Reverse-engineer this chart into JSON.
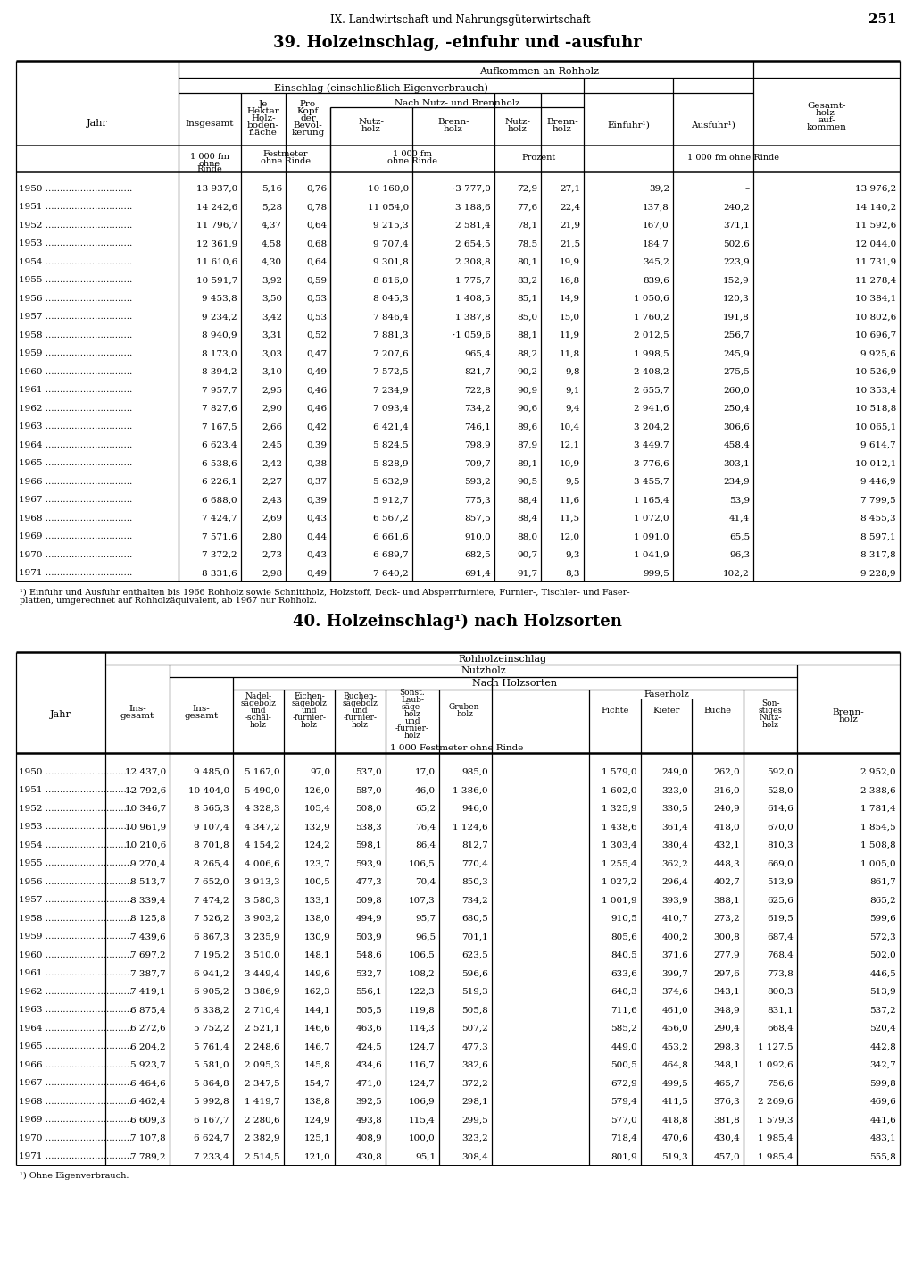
{
  "page_header": "IX. Landwirtschaft und Nahrungsgüterwirtschaft",
  "page_number": "251",
  "table1_title": "39. Holzeinschlag, -einfuhr und -ausfuhr",
  "table2_title": "40. Holzeinschlag¹) nach Holzsorten",
  "table1_footnote_line1": "¹) Einfuhr und Ausfuhr enthalten bis 1966 Rohholz sowie Schnittholz, Holzstoff, Deck- und Absperrfurniere, Furnier-, Tischler- und Faser-",
  "table1_footnote_line2": "platten, umgerechnet auf Rohholzäquivalent, ab 1967 nur Rohholz.",
  "table2_footnote": "¹) Ohne Eigenverbrauch.",
  "table1_data": [
    [
      "1950",
      "13 937,0",
      "5,16",
      "0,76",
      "10 160,0",
      "·3 777,0",
      "72,9",
      "27,1",
      "39,2",
      "–",
      "13 976,2"
    ],
    [
      "1951",
      "14 242,6",
      "5,28",
      "0,78",
      "11 054,0",
      "3 188,6",
      "77,6",
      "22,4",
      "137,8",
      "240,2",
      "14 140,2"
    ],
    [
      "1952",
      "11 796,7",
      "4,37",
      "0,64",
      "9 215,3",
      "2 581,4",
      "78,1",
      "21,9",
      "167,0",
      "371,1",
      "11 592,6"
    ],
    [
      "1953",
      "12 361,9",
      "4,58",
      "0,68",
      "9 707,4",
      "2 654,5",
      "78,5",
      "21,5",
      "184,7",
      "502,6",
      "12 044,0"
    ],
    [
      "1954",
      "11 610,6",
      "4,30",
      "0,64",
      "9 301,8",
      "2 308,8",
      "80,1",
      "19,9",
      "345,2",
      "223,9",
      "11 731,9"
    ],
    [
      "1955",
      "10 591,7",
      "3,92",
      "0,59",
      "8 816,0",
      "1 775,7",
      "83,2",
      "16,8",
      "839,6",
      "152,9",
      "11 278,4"
    ],
    [
      "1956",
      "9 453,8",
      "3,50",
      "0,53",
      "8 045,3",
      "1 408,5",
      "85,1",
      "14,9",
      "1 050,6",
      "120,3",
      "10 384,1"
    ],
    [
      "1957",
      "9 234,2",
      "3,42",
      "0,53",
      "7 846,4",
      "1 387,8",
      "85,0",
      "15,0",
      "1 760,2",
      "191,8",
      "10 802,6"
    ],
    [
      "1958",
      "8 940,9",
      "3,31",
      "0,52",
      "7 881,3",
      "·1 059,6",
      "88,1",
      "11,9",
      "2 012,5",
      "256,7",
      "10 696,7"
    ],
    [
      "1959",
      "8 173,0",
      "3,03",
      "0,47",
      "7 207,6",
      "965,4",
      "88,2",
      "11,8",
      "1 998,5",
      "245,9",
      "9 925,6"
    ],
    [
      "1960",
      "8 394,2",
      "3,10",
      "0,49",
      "7 572,5",
      "821,7",
      "90,2",
      "9,8",
      "2 408,2",
      "275,5",
      "10 526,9"
    ],
    [
      "1961",
      "7 957,7",
      "2,95",
      "0,46",
      "7 234,9",
      "722,8",
      "90,9",
      "9,1",
      "2 655,7",
      "260,0",
      "10 353,4"
    ],
    [
      "1962",
      "7 827,6",
      "2,90",
      "0,46",
      "7 093,4",
      "734,2",
      "90,6",
      "9,4",
      "2 941,6",
      "250,4",
      "10 518,8"
    ],
    [
      "1963",
      "7 167,5",
      "2,66",
      "0,42",
      "6 421,4",
      "746,1",
      "89,6",
      "10,4",
      "3 204,2",
      "306,6",
      "10 065,1"
    ],
    [
      "1964",
      "6 623,4",
      "2,45",
      "0,39",
      "5 824,5",
      "798,9",
      "87,9",
      "12,1",
      "3 449,7",
      "458,4",
      "9 614,7"
    ],
    [
      "1965",
      "6 538,6",
      "2,42",
      "0,38",
      "5 828,9",
      "709,7",
      "89,1",
      "10,9",
      "3 776,6",
      "303,1",
      "10 012,1"
    ],
    [
      "1966",
      "6 226,1",
      "2,27",
      "0,37",
      "5 632,9",
      "593,2",
      "90,5",
      "9,5",
      "3 455,7",
      "234,9",
      "9 446,9"
    ],
    [
      "1967",
      "6 688,0",
      "2,43",
      "0,39",
      "5 912,7",
      "775,3",
      "88,4",
      "11,6",
      "1 165,4",
      "53,9",
      "7 799,5"
    ],
    [
      "1968",
      "7 424,7",
      "2,69",
      "0,43",
      "6 567,2",
      "857,5",
      "88,4",
      "11,5",
      "1 072,0",
      "41,4",
      "8 455,3"
    ],
    [
      "1969",
      "7 571,6",
      "2,80",
      "0,44",
      "6 661,6",
      "910,0",
      "88,0",
      "12,0",
      "1 091,0",
      "65,5",
      "8 597,1"
    ],
    [
      "1970",
      "7 372,2",
      "2,73",
      "0,43",
      "6 689,7",
      "682,5",
      "90,7",
      "9,3",
      "1 041,9",
      "96,3",
      "8 317,8"
    ],
    [
      "1971",
      "8 331,6",
      "2,98",
      "0,49",
      "7 640,2",
      "691,4",
      "91,7",
      "8,3",
      "999,5",
      "102,2",
      "9 228,9"
    ]
  ],
  "table2_data": [
    [
      "1950",
      "12 437,0",
      "9 485,0",
      "5 167,0",
      "97,0",
      "537,0",
      "17,0",
      "985,0",
      "1 579,0",
      "249,0",
      "262,0",
      "592,0",
      "2 952,0"
    ],
    [
      "1951",
      "12 792,6",
      "10 404,0",
      "5 490,0",
      "126,0",
      "587,0",
      "46,0",
      "1 386,0",
      "1 602,0",
      "323,0",
      "316,0",
      "528,0",
      "2 388,6"
    ],
    [
      "1952",
      "10 346,7",
      "8 565,3",
      "4 328,3",
      "105,4",
      "508,0",
      "65,2",
      "946,0",
      "1 325,9",
      "330,5",
      "240,9",
      "614,6",
      "1 781,4"
    ],
    [
      "1953",
      "10 961,9",
      "9 107,4",
      "4 347,2",
      "132,9",
      "538,3",
      "76,4",
      "1 124,6",
      "1 438,6",
      "361,4",
      "418,0",
      "670,0",
      "1 854,5"
    ],
    [
      "1954",
      "10 210,6",
      "8 701,8",
      "4 154,2",
      "124,2",
      "598,1",
      "86,4",
      "812,7",
      "1 303,4",
      "380,4",
      "432,1",
      "810,3",
      "1 508,8"
    ],
    [
      "1955",
      "9 270,4",
      "8 265,4",
      "4 006,6",
      "123,7",
      "593,9",
      "106,5",
      "770,4",
      "1 255,4",
      "362,2",
      "448,3",
      "669,0",
      "1 005,0"
    ],
    [
      "1956",
      "8 513,7",
      "7 652,0",
      "3 913,3",
      "100,5",
      "477,3",
      "70,4",
      "850,3",
      "1 027,2",
      "296,4",
      "402,7",
      "513,9",
      "861,7"
    ],
    [
      "1957",
      "8 339,4",
      "7 474,2",
      "3 580,3",
      "133,1",
      "509,8",
      "107,3",
      "734,2",
      "1 001,9",
      "393,9",
      "388,1",
      "625,6",
      "865,2"
    ],
    [
      "1958",
      "8 125,8",
      "7 526,2",
      "3 903,2",
      "138,0",
      "494,9",
      "95,7",
      "680,5",
      "910,5",
      "410,7",
      "273,2",
      "619,5",
      "599,6"
    ],
    [
      "1959",
      "7 439,6",
      "6 867,3",
      "3 235,9",
      "130,9",
      "503,9",
      "96,5",
      "701,1",
      "805,6",
      "400,2",
      "300,8",
      "687,4",
      "572,3"
    ],
    [
      "1960",
      "7 697,2",
      "7 195,2",
      "3 510,0",
      "148,1",
      "548,6",
      "106,5",
      "623,5",
      "840,5",
      "371,6",
      "277,9",
      "768,4",
      "502,0"
    ],
    [
      "1961",
      "7 387,7",
      "6 941,2",
      "3 449,4",
      "149,6",
      "532,7",
      "108,2",
      "596,6",
      "633,6",
      "399,7",
      "297,6",
      "773,8",
      "446,5"
    ],
    [
      "1962",
      "7 419,1",
      "6 905,2",
      "3 386,9",
      "162,3",
      "556,1",
      "122,3",
      "519,3",
      "640,3",
      "374,6",
      "343,1",
      "800,3",
      "513,9"
    ],
    [
      "1963",
      "6 875,4",
      "6 338,2",
      "2 710,4",
      "144,1",
      "505,5",
      "119,8",
      "505,8",
      "711,6",
      "461,0",
      "348,9",
      "831,1",
      "537,2"
    ],
    [
      "1964",
      "6 272,6",
      "5 752,2",
      "2 521,1",
      "146,6",
      "463,6",
      "114,3",
      "507,2",
      "585,2",
      "456,0",
      "290,4",
      "668,4",
      "520,4"
    ],
    [
      "1965",
      "6 204,2",
      "5 761,4",
      "2 248,6",
      "146,7",
      "424,5",
      "124,7",
      "477,3",
      "449,0",
      "453,2",
      "298,3",
      "1 127,5",
      "442,8"
    ],
    [
      "1966",
      "5 923,7",
      "5 581,0",
      "2 095,3",
      "145,8",
      "434,6",
      "116,7",
      "382,6",
      "500,5",
      "464,8",
      "348,1",
      "1 092,6",
      "342,7"
    ],
    [
      "1967",
      "6 464,6",
      "5 864,8",
      "2 347,5",
      "154,7",
      "471,0",
      "124,7",
      "372,2",
      "672,9",
      "499,5",
      "465,7",
      "756,6",
      "599,8"
    ],
    [
      "1968",
      "6 462,4",
      "5 992,8",
      "1 419,7",
      "138,8",
      "392,5",
      "106,9",
      "298,1",
      "579,4",
      "411,5",
      "376,3",
      "2 269,6",
      "469,6"
    ],
    [
      "1969",
      "6 609,3",
      "6 167,7",
      "2 280,6",
      "124,9",
      "493,8",
      "115,4",
      "299,5",
      "577,0",
      "418,8",
      "381,8",
      "1 579,3",
      "441,6"
    ],
    [
      "1970",
      "7 107,8",
      "6 624,7",
      "2 382,9",
      "125,1",
      "408,9",
      "100,0",
      "323,2",
      "718,4",
      "470,6",
      "430,4",
      "1 985,4",
      "483,1"
    ],
    [
      "1971",
      "7 789,2",
      "7 233,4",
      "2 514,5",
      "121,0",
      "430,8",
      "95,1",
      "308,4",
      "801,9",
      "519,3",
      "457,0",
      "1 985,4",
      "555,8"
    ]
  ]
}
